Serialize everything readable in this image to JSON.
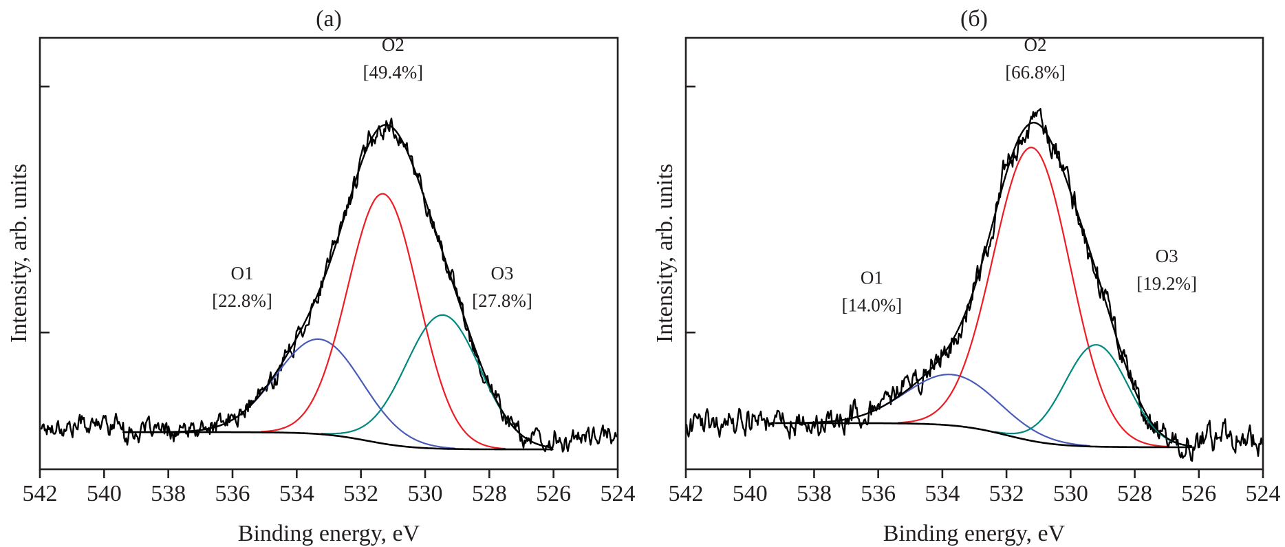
{
  "chart_data": [
    {
      "id": "a",
      "type": "line",
      "title": "(a)",
      "xlabel": "Binding energy, eV",
      "ylabel": "Intensity, arb. units",
      "xlim": [
        542,
        524
      ],
      "ylim": [
        0,
        1
      ],
      "x_ticks": [
        542,
        540,
        538,
        536,
        534,
        532,
        530,
        528,
        526,
        524
      ],
      "y_ticks": [
        0.317,
        0.887
      ],
      "y_tick_labels": false,
      "grid": false,
      "baseline": {
        "start_ev": 539.4,
        "end_ev": 526.0,
        "left_level": 0.086,
        "right_level": 0.046,
        "step_center_ev": 531.8,
        "step_width_ev": 1.6
      },
      "components": [
        {
          "name": "O1",
          "percent": "[22.8%]",
          "center_ev": 533.3,
          "height": 0.22,
          "sigma_ev": 1.34,
          "color": "#4a5cb8"
        },
        {
          "name": "O2",
          "percent": "[49.4%]",
          "center_ev": 531.3,
          "height": 0.579,
          "sigma_ev": 1.1,
          "color": "#ee1c25"
        },
        {
          "name": "O3",
          "percent": "[27.8%]",
          "center_ev": 529.45,
          "height": 0.31,
          "sigma_ev": 1.16,
          "color": "#00897e"
        }
      ],
      "experimental": {
        "noise_amplitude": 0.022,
        "pre_edge_level": 0.11,
        "post_edge_level": 0.05,
        "tail_level": 0.065,
        "color": "#000000"
      },
      "envelope_color": "#000000",
      "annotations": [
        {
          "text": "O1",
          "sub": "[22.8%]",
          "near_ev": 535.7,
          "level": 0.44
        },
        {
          "text": "O2",
          "sub": "[49.4%]",
          "near_ev": 531.0,
          "level": 0.97
        },
        {
          "text": "O3",
          "sub": "[27.8%]",
          "near_ev": 527.6,
          "level": 0.44
        }
      ]
    },
    {
      "id": "b",
      "type": "line",
      "title": "(б)",
      "xlabel": "Binding energy, eV",
      "ylabel": "Intensity, arb. units",
      "xlim": [
        542,
        524
      ],
      "ylim": [
        0,
        1
      ],
      "x_ticks": [
        542,
        540,
        538,
        536,
        534,
        532,
        530,
        528,
        526,
        524
      ],
      "y_ticks": [
        0.317,
        0.887
      ],
      "y_tick_labels": false,
      "grid": false,
      "baseline": {
        "start_ev": 539.2,
        "end_ev": 526.2,
        "left_level": 0.107,
        "right_level": 0.051,
        "step_center_ev": 532.0,
        "step_width_ev": 1.7
      },
      "components": [
        {
          "name": "O1",
          "percent": "[14.0%]",
          "center_ev": 533.7,
          "height": 0.118,
          "sigma_ev": 1.45,
          "color": "#4a5cb8"
        },
        {
          "name": "O2",
          "percent": "[66.8%]",
          "center_ev": 531.2,
          "height": 0.68,
          "sigma_ev": 1.2,
          "color": "#ee1c25"
        },
        {
          "name": "O3",
          "percent": "[19.2%]",
          "center_ev": 529.2,
          "height": 0.236,
          "sigma_ev": 0.99,
          "color": "#00897e"
        }
      ],
      "experimental": {
        "noise_amplitude": 0.03,
        "pre_edge_level": 0.125,
        "post_edge_level": 0.06,
        "tail_level": 0.07,
        "color": "#000000"
      },
      "envelope_color": "#000000",
      "annotations": [
        {
          "text": "O1",
          "sub": "[14.0%]",
          "near_ev": 536.2,
          "level": 0.43
        },
        {
          "text": "O2",
          "sub": "[66.8%]",
          "near_ev": 531.1,
          "level": 0.97
        },
        {
          "text": "O3",
          "sub": "[19.2%]",
          "near_ev": 527.0,
          "level": 0.48
        }
      ]
    }
  ]
}
